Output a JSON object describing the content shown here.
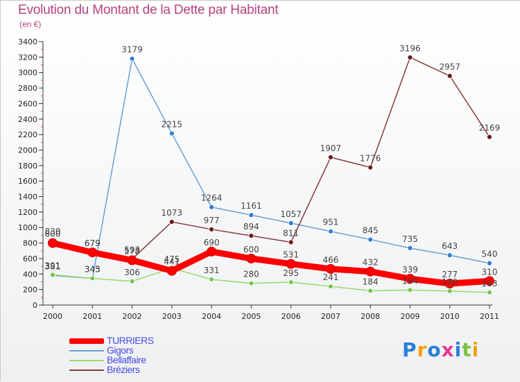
{
  "header": {
    "title": "Evolution du Montant de la Dette par Habitant",
    "subtitle": "(en €)"
  },
  "logo": {
    "text": "Proxiti",
    "colors": [
      "#2b7fd8",
      "#f2a20c",
      "#2b7fd8",
      "#e53a8e",
      "#2b7fd8",
      "#7cc242",
      "#f2a20c"
    ]
  },
  "chart_data": {
    "type": "line",
    "x": [
      "2000",
      "2001",
      "2002",
      "2003",
      "2004",
      "2005",
      "2006",
      "2007",
      "2008",
      "2009",
      "2010",
      "2011"
    ],
    "ylim": [
      0,
      3400
    ],
    "yticks": [
      0,
      200,
      400,
      600,
      800,
      1000,
      1200,
      1400,
      1600,
      1800,
      2000,
      2200,
      2400,
      2600,
      2800,
      3000,
      3200,
      3400
    ],
    "grid": false,
    "legend_position": "bottom-left",
    "series": [
      {
        "name": "TURRIERS",
        "color": "#ff0000",
        "marker": "#ff0000",
        "values": [
          800,
          679,
          578,
          441,
          690,
          600,
          531,
          466,
          432,
          339,
          277,
          310
        ],
        "labels": [
          "800",
          "679",
          "578",
          "441",
          "690",
          "600",
          "531",
          "466",
          "432",
          "339",
          "277",
          "310"
        ]
      },
      {
        "name": "Gigors",
        "color": "#6a9fd4",
        "marker": "#2f7fd0",
        "values": [
          381,
          343,
          3179,
          2215,
          1264,
          1161,
          1057,
          951,
          845,
          735,
          643,
          540
        ],
        "labels": [
          "381",
          "343",
          "3179",
          "2215",
          "1264",
          "1161",
          "1057",
          "951",
          "845",
          "735",
          "643",
          "540"
        ]
      },
      {
        "name": "Bellaffaire",
        "color": "#99d96a",
        "marker": "#78c850",
        "values": [
          391,
          345,
          306,
          475,
          331,
          280,
          295,
          241,
          184,
          194,
          180,
          163
        ],
        "labels": [
          "391",
          "345",
          "306",
          "475",
          "331",
          "280",
          "295",
          "241",
          "184",
          "194",
          "180",
          "163"
        ]
      },
      {
        "name": "Bréziers",
        "color": "#8a3a3a",
        "marker": "#6a1a1a",
        "values": [
          830,
          679,
          593,
          1073,
          977,
          894,
          811,
          1907,
          1776,
          3196,
          2957,
          2169
        ],
        "labels": [
          "830",
          "679",
          "593",
          "1073",
          "977",
          "894",
          "811",
          "1907",
          "1776",
          "3196",
          "2957",
          "2169"
        ]
      }
    ]
  }
}
